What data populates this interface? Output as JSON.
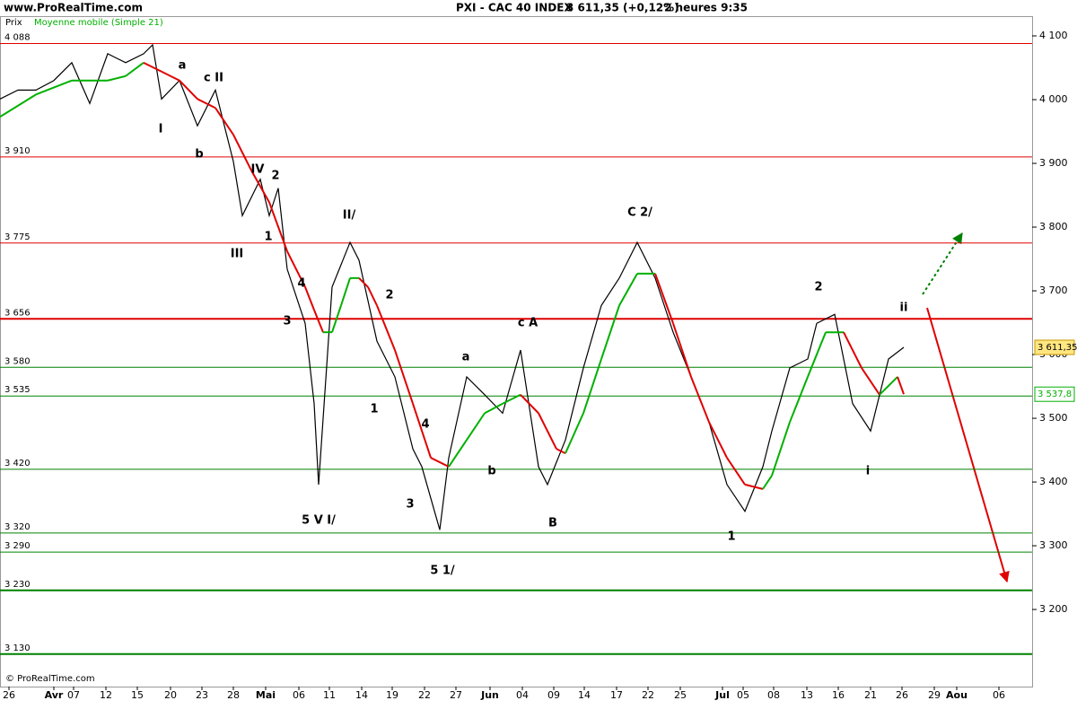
{
  "chart_data": {
    "type": "line",
    "site": "www.ProRealTime.com",
    "title": "PXI - CAC 40 INDEX",
    "quote": "3 611,35 (+0,12%)",
    "interval": "2 heures  9:35",
    "footer": "© ProRealTime.com",
    "ylim": [
      3079,
      4131
    ],
    "yticks": [
      {
        "value": 4100,
        "label": "4 100"
      },
      {
        "value": 4000,
        "label": "4 000"
      },
      {
        "value": 3900,
        "label": "3 900"
      },
      {
        "value": 3800,
        "label": "3 800"
      },
      {
        "value": 3700,
        "label": "3 700"
      },
      {
        "value": 3600,
        "label": "3 600"
      },
      {
        "value": 3500,
        "label": "3 500"
      },
      {
        "value": 3400,
        "label": "3 400"
      },
      {
        "value": 3300,
        "label": "3 300"
      },
      {
        "value": 3200,
        "label": "3 200"
      }
    ],
    "xlim": [
      0,
      115
    ],
    "xticks": [
      {
        "value": 1,
        "label": "26"
      },
      {
        "value": 6,
        "label": "Avr"
      },
      {
        "value": 8.2,
        "label": "07"
      },
      {
        "value": 11.8,
        "label": "12"
      },
      {
        "value": 15.3,
        "label": "15"
      },
      {
        "value": 19,
        "label": "20"
      },
      {
        "value": 22.5,
        "label": "23"
      },
      {
        "value": 26,
        "label": "28"
      },
      {
        "value": 29.6,
        "label": "Mai"
      },
      {
        "value": 33.3,
        "label": "06"
      },
      {
        "value": 36.7,
        "label": "11"
      },
      {
        "value": 40.3,
        "label": "14"
      },
      {
        "value": 43.7,
        "label": "19"
      },
      {
        "value": 47.3,
        "label": "22"
      },
      {
        "value": 50.8,
        "label": "27"
      },
      {
        "value": 54.6,
        "label": "Jun"
      },
      {
        "value": 58.2,
        "label": "04"
      },
      {
        "value": 61.7,
        "label": "09"
      },
      {
        "value": 65.1,
        "label": "14"
      },
      {
        "value": 68.7,
        "label": "17"
      },
      {
        "value": 72.2,
        "label": "22"
      },
      {
        "value": 75.8,
        "label": "25"
      },
      {
        "value": 80.5,
        "label": "Jul"
      },
      {
        "value": 82.8,
        "label": "05"
      },
      {
        "value": 86.2,
        "label": "08"
      },
      {
        "value": 89.9,
        "label": "13"
      },
      {
        "value": 93.4,
        "label": "16"
      },
      {
        "value": 97,
        "label": "21"
      },
      {
        "value": 100.5,
        "label": "26"
      },
      {
        "value": 104.1,
        "label": "29"
      },
      {
        "value": 106.6,
        "label": "Aou"
      },
      {
        "value": 111.3,
        "label": "06"
      }
    ],
    "series": [
      {
        "name": "Prix",
        "color": "#000000",
        "last_label": "3 611,35",
        "x": [
          0,
          2,
          4,
          6,
          8,
          10,
          12,
          14,
          16,
          17,
          18,
          20,
          22,
          24,
          26,
          27,
          29,
          30,
          31,
          32,
          34,
          35,
          35.5,
          37,
          39,
          40,
          42,
          44,
          46,
          47,
          49,
          50,
          52,
          54,
          56,
          58,
          60,
          61,
          63,
          65,
          67,
          69,
          71,
          73,
          75,
          77,
          79,
          81,
          83,
          85,
          86,
          88,
          90,
          91,
          93,
          94,
          95,
          97,
          99,
          100.7
        ],
        "values": [
          4001,
          4015,
          4015,
          4030,
          4058,
          3994,
          4072,
          4058,
          4072,
          4086,
          4001,
          4030,
          3959,
          4015,
          3903,
          3818,
          3875,
          3818,
          3861,
          3734,
          3649,
          3523,
          3396,
          3706,
          3776,
          3748,
          3621,
          3565,
          3452,
          3424,
          3325,
          3438,
          3565,
          3537,
          3508,
          3607,
          3424,
          3396,
          3466,
          3579,
          3677,
          3720,
          3776,
          3720,
          3635,
          3565,
          3494,
          3396,
          3354,
          3424,
          3480,
          3579,
          3593,
          3649,
          3663,
          3593,
          3523,
          3480,
          3593,
          3611.35
        ]
      },
      {
        "name": "Moyenne mobile (Simple 21)",
        "color": "#00b000",
        "down_color": "#e00000",
        "last_label": "3 537,8",
        "x": [
          0,
          4,
          8,
          10,
          12,
          14,
          16,
          18,
          20,
          22,
          24,
          26,
          28,
          30,
          32,
          34,
          35,
          36,
          37,
          38,
          39,
          40,
          41,
          42,
          44,
          46,
          48,
          50,
          52,
          54,
          56,
          58,
          60,
          62,
          63,
          65,
          67,
          69,
          71,
          73,
          75,
          77,
          79,
          81,
          83,
          85,
          86,
          88,
          90,
          92,
          94,
          96,
          98,
          100,
          100.7
        ],
        "values": [
          3973,
          4008,
          4030,
          4030,
          4030,
          4037,
          4058,
          4044,
          4030,
          4001,
          3987,
          3945,
          3889,
          3839,
          3762,
          3706,
          3670,
          3635,
          3635,
          3677,
          3720,
          3720,
          3706,
          3677,
          3607,
          3523,
          3438,
          3424,
          3466,
          3508,
          3523,
          3537,
          3508,
          3452,
          3445,
          3508,
          3593,
          3677,
          3727,
          3727,
          3649,
          3565,
          3494,
          3438,
          3396,
          3389,
          3410,
          3494,
          3565,
          3635,
          3635,
          3579,
          3537,
          3565,
          3537.8
        ]
      }
    ],
    "levels": [
      {
        "value": 4088,
        "label": "4 088",
        "color": "#e00000",
        "thick": false
      },
      {
        "value": 3910,
        "label": "3 910",
        "color": "#e00000",
        "thick": false
      },
      {
        "value": 3775,
        "label": "3 775",
        "color": "#e00000",
        "thick": false
      },
      {
        "value": 3656,
        "label": "3 656",
        "color": "#e00000",
        "thick": true
      },
      {
        "value": 3580,
        "label": "3 580",
        "color": "#008000",
        "thick": false
      },
      {
        "value": 3535,
        "label": "3 535",
        "color": "#008000",
        "thick": false
      },
      {
        "value": 3420,
        "label": "3 420",
        "color": "#008000",
        "thick": false
      },
      {
        "value": 3320,
        "label": "3 320",
        "color": "#008000",
        "thick": false
      },
      {
        "value": 3290,
        "label": "3 290",
        "color": "#008000",
        "thick": false
      },
      {
        "value": 3230,
        "label": "3 230",
        "color": "#008000",
        "thick": true
      },
      {
        "value": 3130,
        "label": "3 130",
        "color": "#008000",
        "thick": true
      }
    ],
    "annotations": [
      "a",
      "c II",
      "I",
      "b",
      "IV",
      "2",
      "1",
      "III",
      "II/",
      "4",
      "3",
      "2",
      "1",
      "4",
      "3",
      "5 V I/",
      "5 1/",
      "a",
      "c A",
      "b",
      "B",
      "C 2/",
      "1",
      "2",
      "ii",
      "i"
    ]
  }
}
